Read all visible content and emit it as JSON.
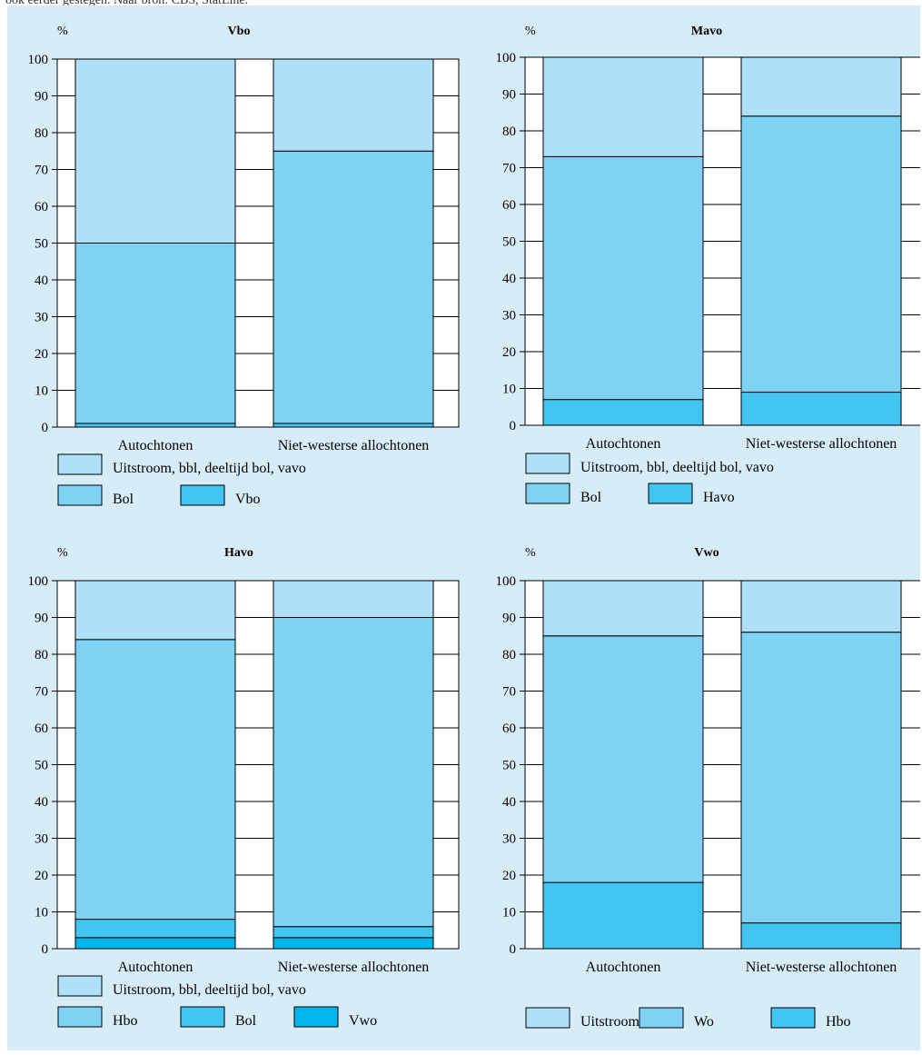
{
  "caption": "ook eerder gestegen. Naar bron: CBS, StatLine.",
  "colors": {
    "background": "#d6edf8",
    "light": "#aee0f8",
    "medium": "#7fd2f4",
    "dark": "#43c5f1",
    "darkest": "#00b6ec",
    "stripe": "#ffffff"
  },
  "chart_data": [
    {
      "type": "bar",
      "stacked": true,
      "title": "Vbo",
      "ylabel": "%",
      "ylim": [
        0,
        100
      ],
      "yticks": [
        "0",
        "10",
        "20",
        "30",
        "40",
        "50",
        "60",
        "70",
        "80",
        "90",
        "100"
      ],
      "categories": [
        "Autochtonen",
        "Niet-westerse allochtonen"
      ],
      "series": [
        {
          "name": "Vbo",
          "color": "dark",
          "values": [
            1,
            1
          ]
        },
        {
          "name": "Bol",
          "color": "medium",
          "values": [
            49,
            74
          ]
        },
        {
          "name": "Uitstroom, bbl, deeltijd bol, vavo",
          "color": "light",
          "values": [
            50,
            25
          ]
        }
      ],
      "legend_rows": [
        [
          "Uitstroom, bbl, deeltijd bol, vavo"
        ],
        [
          "Bol",
          "Vbo"
        ]
      ]
    },
    {
      "type": "bar",
      "stacked": true,
      "title": "Mavo",
      "ylabel": "%",
      "ylim": [
        0,
        100
      ],
      "yticks": [
        "0",
        "10",
        "20",
        "30",
        "40",
        "50",
        "60",
        "70",
        "80",
        "90",
        "100"
      ],
      "categories": [
        "Autochtonen",
        "Niet-westerse allochtonen"
      ],
      "series": [
        {
          "name": "Havo",
          "color": "dark",
          "values": [
            7,
            9
          ]
        },
        {
          "name": "Bol",
          "color": "medium",
          "values": [
            66,
            75
          ]
        },
        {
          "name": "Uitstroom, bbl, deeltijd bol, vavo",
          "color": "light",
          "values": [
            27,
            16
          ]
        }
      ],
      "legend_rows": [
        [
          "Uitstroom, bbl, deeltijd bol, vavo"
        ],
        [
          "Bol",
          "Havo"
        ]
      ]
    },
    {
      "type": "bar",
      "stacked": true,
      "title": "Havo",
      "ylabel": "%",
      "ylim": [
        0,
        100
      ],
      "yticks": [
        "0",
        "10",
        "20",
        "30",
        "40",
        "50",
        "60",
        "70",
        "80",
        "90",
        "100"
      ],
      "categories": [
        "Autochtonen",
        "Niet-westerse allochtonen"
      ],
      "series": [
        {
          "name": "Vwo",
          "color": "darkest",
          "values": [
            3,
            3
          ]
        },
        {
          "name": "Bol",
          "color": "dark",
          "values": [
            5,
            3
          ]
        },
        {
          "name": "Hbo",
          "color": "medium",
          "values": [
            76,
            84
          ]
        },
        {
          "name": "Uitstroom, bbl, deeltijd bol, vavo",
          "color": "light",
          "values": [
            16,
            10
          ]
        }
      ],
      "legend_rows": [
        [
          "Uitstroom, bbl, deeltijd bol, vavo"
        ],
        [
          "Hbo",
          "Bol",
          "Vwo"
        ]
      ]
    },
    {
      "type": "bar",
      "stacked": true,
      "title": "Vwo",
      "ylabel": "%",
      "ylim": [
        0,
        100
      ],
      "yticks": [
        "0",
        "10",
        "20",
        "30",
        "40",
        "50",
        "60",
        "70",
        "80",
        "90",
        "100"
      ],
      "categories": [
        "Autochtonen",
        "Niet-westerse allochtonen"
      ],
      "series": [
        {
          "name": "Hbo",
          "color": "dark",
          "values": [
            18,
            7
          ]
        },
        {
          "name": "Wo",
          "color": "medium",
          "values": [
            67,
            79
          ]
        },
        {
          "name": "Uitstroom",
          "color": "light",
          "values": [
            15,
            14
          ]
        }
      ],
      "legend_rows": [
        [
          "Uitstroom",
          "Wo",
          "Hbo"
        ]
      ]
    }
  ]
}
